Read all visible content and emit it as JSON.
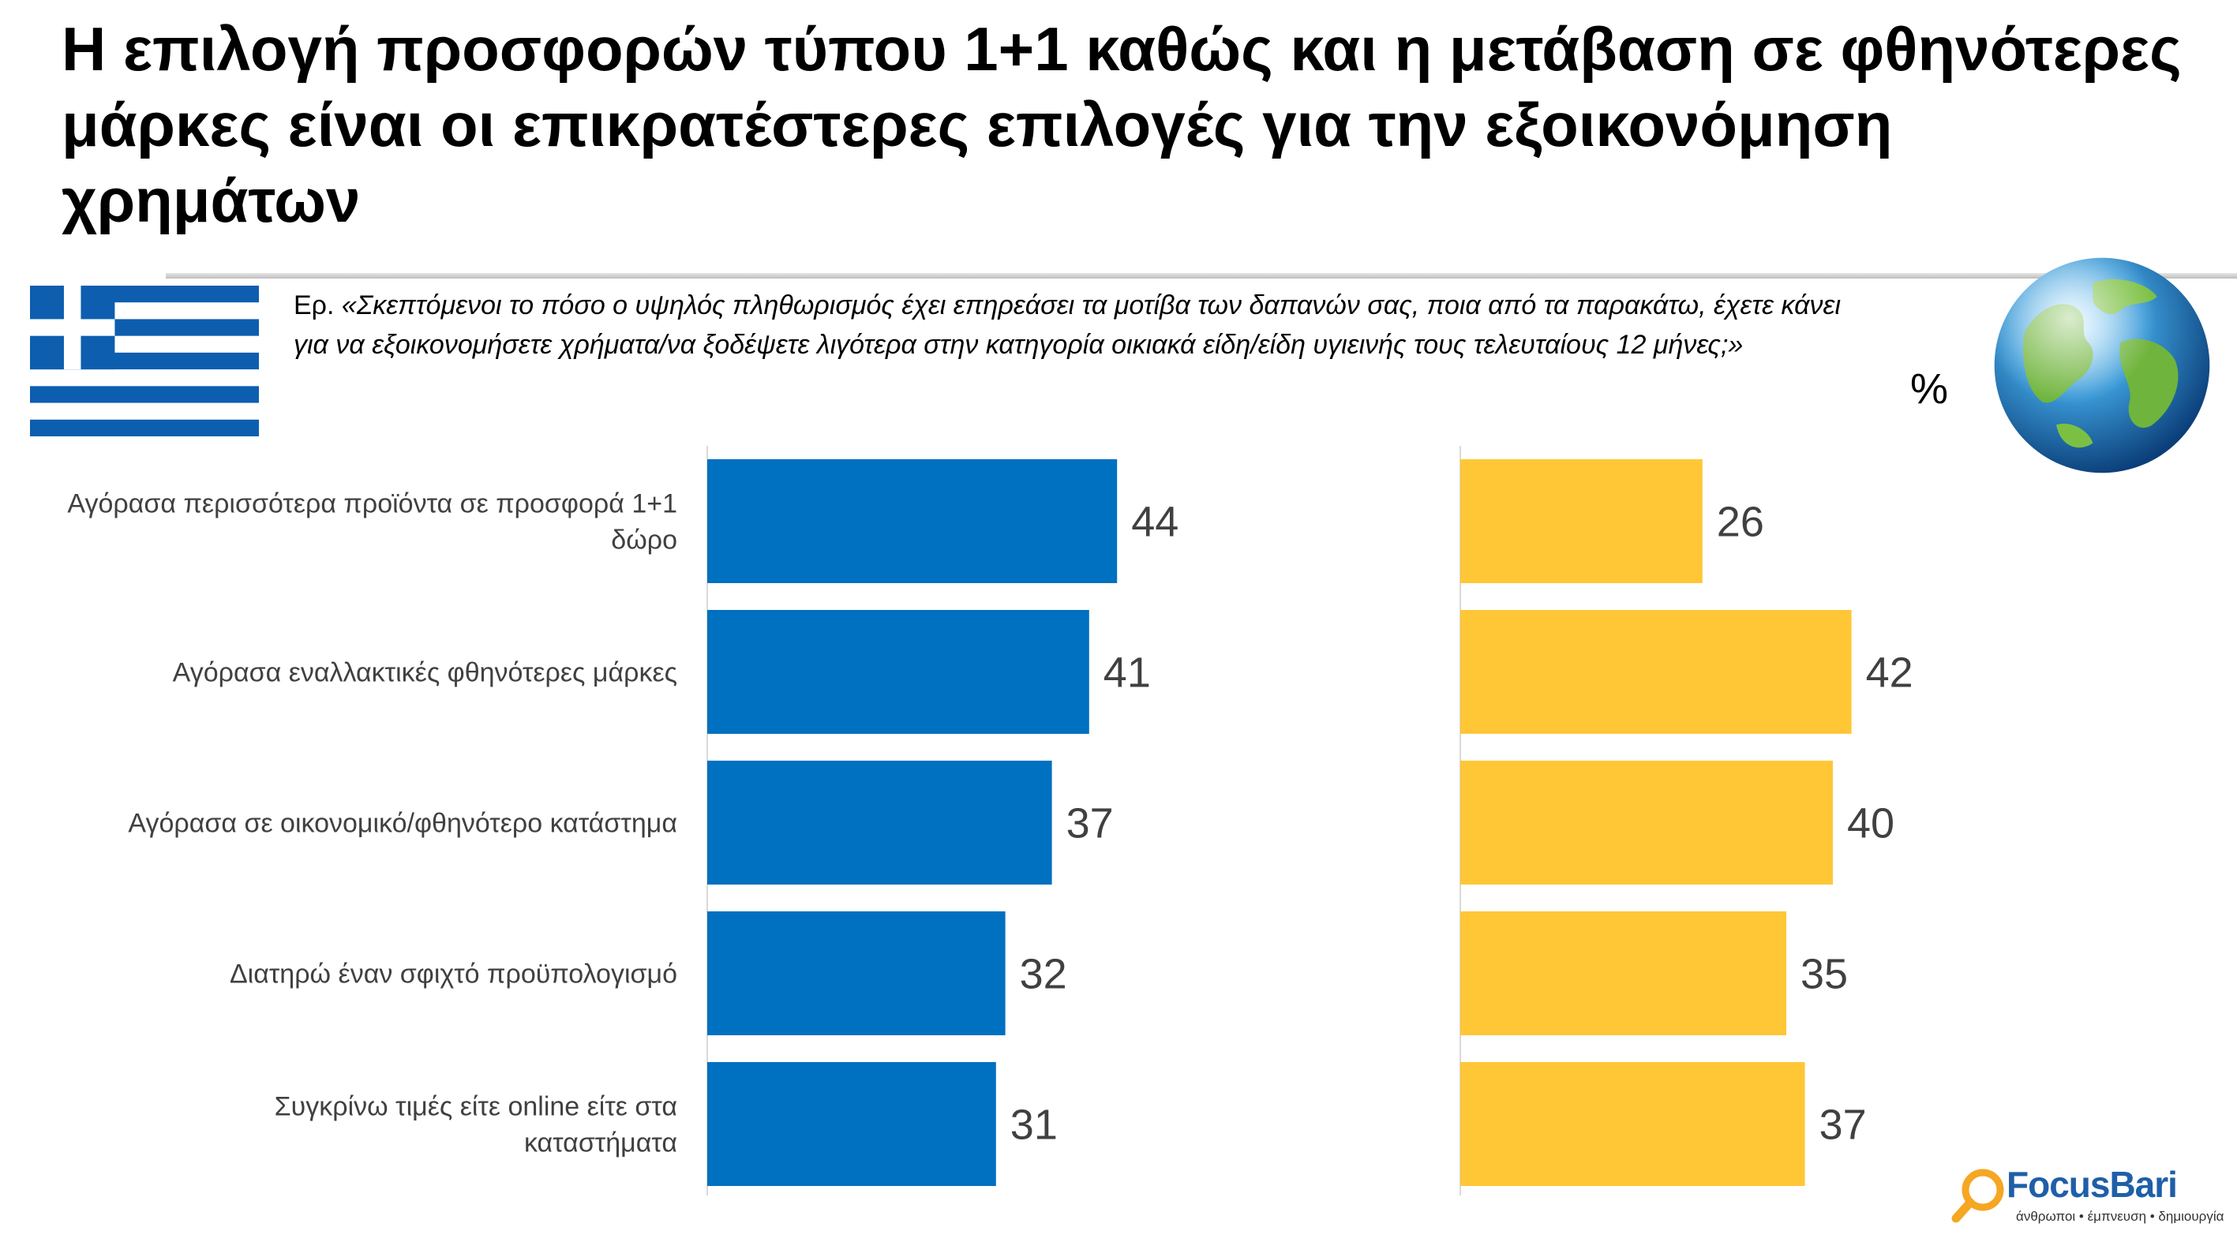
{
  "page": {
    "title": "Η επιλογή προσφορών τύπου 1+1 καθώς και η μετάβαση σε φθηνότερες μάρκες είναι οι επικρατέστερες επιλογές για την εξοικονόμηση χρημάτων",
    "question_prefix": "Ερ.",
    "question_text": "«Σκεπτόμενοι το πόσο ο υψηλός πληθωρισμός έχει επηρεάσει τα μοτίβα των δαπανών σας, ποια από τα παρακάτω, έχετε κάνει για να εξοικονομήσετε χρήματα/να ξοδέψετε λιγότερα στην κατηγορία οικιακά είδη/είδη υγιεινής τους τελευταίους 12 μήνες;»",
    "unit": "%",
    "left_flag_icon": "greece-flag-icon",
    "right_globe_icon": "globe-icon"
  },
  "logo": {
    "brand": "FocusBari",
    "tagline": "άνθρωποι • έμπνευση • δημιουργία",
    "icon": "magnifier-icon"
  },
  "chart_data": {
    "type": "bar",
    "orientation": "horizontal",
    "categories": [
      "Αγόρασα περισσότερα προϊόντα σε προσφορά 1+1 δώρο",
      "Αγόρασα εναλλακτικές φθηνότερες μάρκες",
      "Αγόρασα σε οικονομικό/φθηνότερο κατάστημα",
      "Διατηρώ έναν σφιχτό προϋπολογισμό",
      "Συγκρίνω τιμές είτε online είτε στα καταστήματα"
    ],
    "series": [
      {
        "values": [
          44,
          41,
          37,
          32,
          31
        ],
        "color": "#0070c0"
      },
      {
        "values": [
          26,
          42,
          40,
          35,
          37
        ],
        "color": "#ffc736"
      }
    ],
    "xlim": [
      0,
      100
    ],
    "grid": false,
    "legend": "none"
  }
}
